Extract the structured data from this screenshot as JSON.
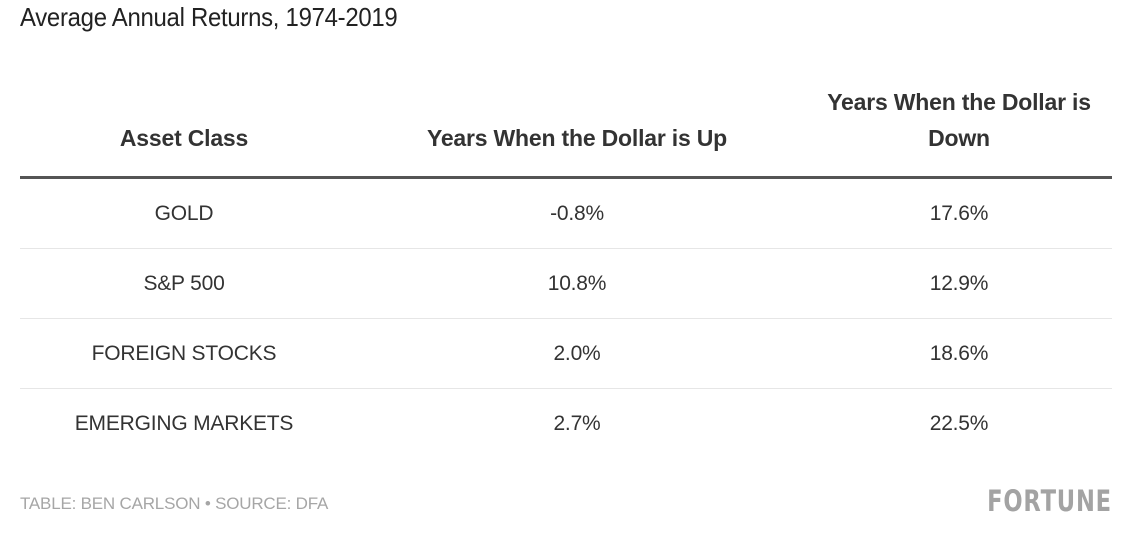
{
  "chart_data": {
    "type": "table",
    "title": "Average Annual Returns, 1974-2019",
    "columns": [
      "Asset Class",
      "Years When the Dollar is Up",
      "Years When the Dollar is Down"
    ],
    "rows": [
      [
        "GOLD",
        "-0.8%",
        "17.6%"
      ],
      [
        "S&P 500",
        "10.8%",
        "12.9%"
      ],
      [
        "FOREIGN STOCKS",
        "2.0%",
        "18.6%"
      ],
      [
        "EMERGING MARKETS",
        "2.7%",
        "22.5%"
      ]
    ],
    "footer": "TABLE: BEN CARLSON • SOURCE: DFA",
    "logo": "FORTUNE"
  }
}
